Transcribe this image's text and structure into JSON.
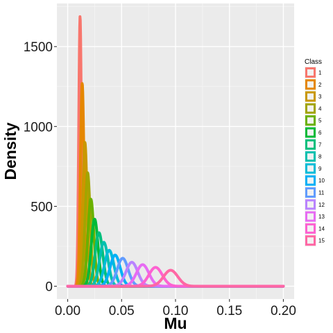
{
  "chart_data": {
    "type": "line",
    "title": "",
    "xlabel": "Mu",
    "ylabel": "Density",
    "xlim": [
      -0.01,
      0.21
    ],
    "ylim": [
      -80,
      1770
    ],
    "x_ticks": [
      0.0,
      0.05,
      0.1,
      0.15,
      0.2
    ],
    "x_tick_labels": [
      "0.00",
      "0.05",
      "0.10",
      "0.15",
      "0.20"
    ],
    "y_ticks": [
      0,
      500,
      1000,
      1500
    ],
    "y_tick_labels": [
      "0",
      "500",
      "1000",
      "1500"
    ],
    "grid": true,
    "legend": {
      "title": "Class",
      "placement": "right",
      "entries": [
        "1",
        "2",
        "3",
        "4",
        "5",
        "6",
        "7",
        "8",
        "9",
        "10",
        "11",
        "12",
        "13",
        "14",
        "15"
      ]
    },
    "x_range": [
      0.0,
      0.2
    ],
    "series": [
      {
        "name": "1",
        "color": "#F8766D",
        "peak_x": 0.0115,
        "peak_y": 1690
      },
      {
        "name": "2",
        "color": "#E58700",
        "peak_x": 0.0135,
        "peak_y": 1270
      },
      {
        "name": "3",
        "color": "#C99800",
        "peak_x": 0.016,
        "peak_y": 900
      },
      {
        "name": "4",
        "color": "#A3A500",
        "peak_x": 0.0185,
        "peak_y": 710
      },
      {
        "name": "5",
        "color": "#6BB100",
        "peak_x": 0.0215,
        "peak_y": 545
      },
      {
        "name": "6",
        "color": "#00BA38",
        "peak_x": 0.025,
        "peak_y": 420
      },
      {
        "name": "7",
        "color": "#00BF7D",
        "peak_x": 0.029,
        "peak_y": 335
      },
      {
        "name": "8",
        "color": "#00C0AF",
        "peak_x": 0.0335,
        "peak_y": 275
      },
      {
        "name": "9",
        "color": "#00BCD8",
        "peak_x": 0.0385,
        "peak_y": 225
      },
      {
        "name": "10",
        "color": "#00B0F6",
        "peak_x": 0.044,
        "peak_y": 195
      },
      {
        "name": "11",
        "color": "#619CFF",
        "peak_x": 0.051,
        "peak_y": 175
      },
      {
        "name": "12",
        "color": "#B983FF",
        "peak_x": 0.0595,
        "peak_y": 150
      },
      {
        "name": "13",
        "color": "#E76BF3",
        "peak_x": 0.0695,
        "peak_y": 135
      },
      {
        "name": "14",
        "color": "#FD61D1",
        "peak_x": 0.0815,
        "peak_y": 118
      },
      {
        "name": "15",
        "color": "#FF67A4",
        "peak_x": 0.0955,
        "peak_y": 100
      }
    ]
  }
}
